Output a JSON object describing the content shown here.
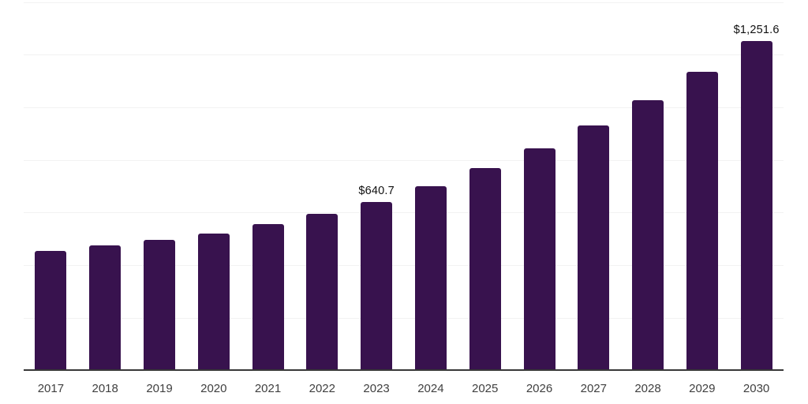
{
  "chart_data": {
    "type": "bar",
    "title": "",
    "xlabel": "",
    "ylabel": "",
    "categories": [
      "2017",
      "2018",
      "2019",
      "2020",
      "2021",
      "2022",
      "2023",
      "2024",
      "2025",
      "2026",
      "2027",
      "2028",
      "2029",
      "2030"
    ],
    "values": [
      455,
      475,
      495,
      520,
      557,
      595,
      640.7,
      700,
      768,
      845,
      932,
      1027,
      1136,
      1251.6
    ],
    "value_labels": [
      "",
      "",
      "",
      "",
      "",
      "",
      "$640.7",
      "",
      "",
      "",
      "",
      "",
      "",
      "$1,251.6"
    ],
    "ylim": [
      0,
      1400
    ],
    "grid_step": 200,
    "grid": true,
    "legend": false,
    "colors": {
      "bar": "#38124E",
      "axis_line": "#383838",
      "gridline": "#f2f2f2",
      "value_label": "#101010",
      "tick_label": "#3f3f3f",
      "background": "#ffffff"
    }
  }
}
